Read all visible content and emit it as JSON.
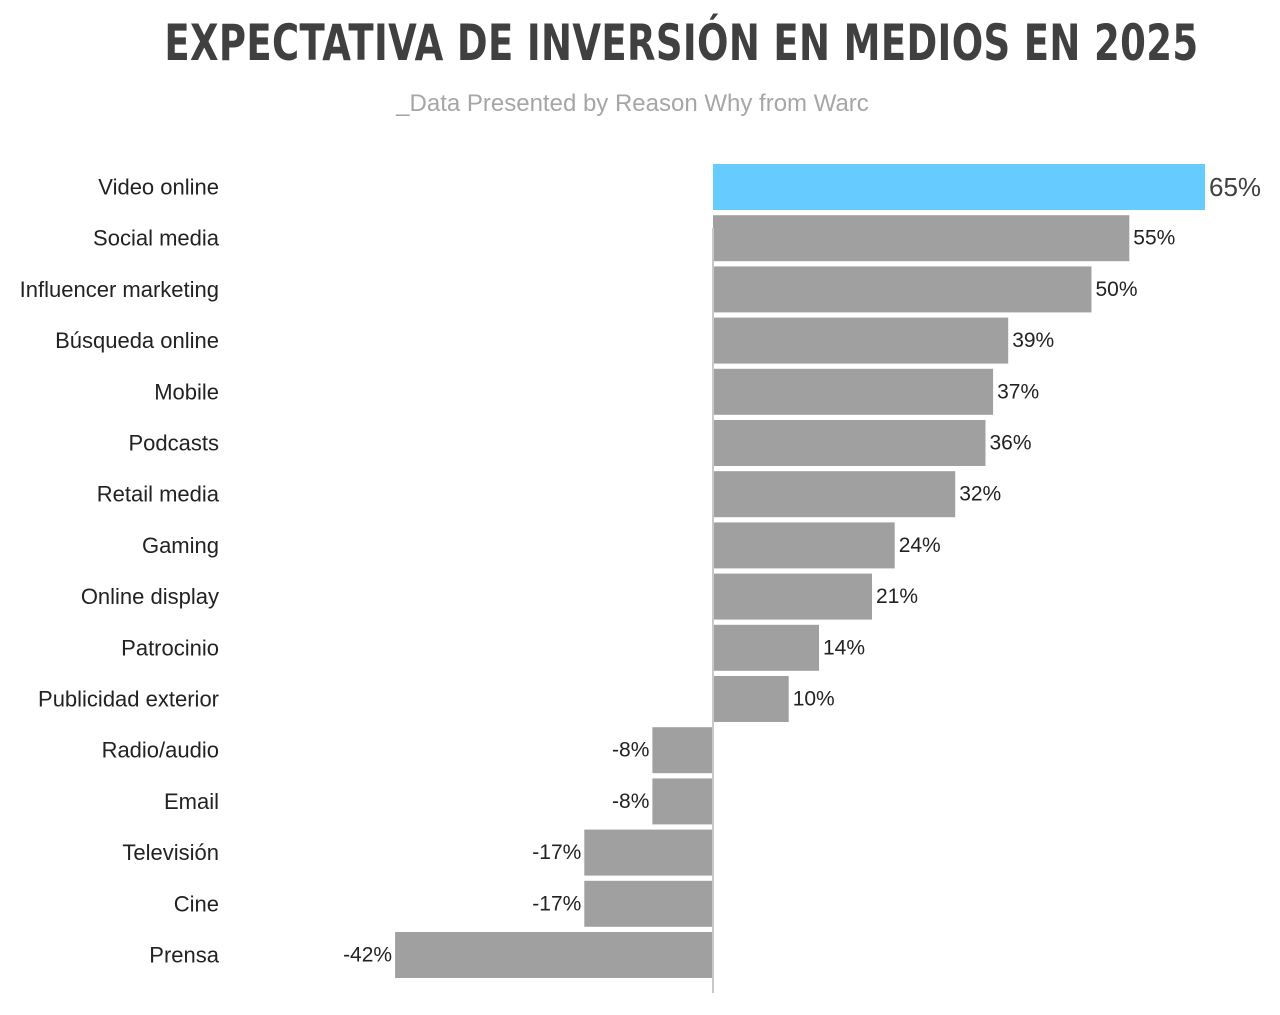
{
  "header": {
    "title": "EXPECTATIVA DE INVERSIÓN EN MEDIOS EN 2025",
    "subtitle": "_Data Presented by Reason Why from Warc"
  },
  "chart_data": {
    "type": "bar",
    "orientation": "horizontal",
    "title": "EXPECTATIVA DE INVERSIÓN EN MEDIOS EN 2025",
    "subtitle": "_Data Presented by Reason Why from Warc",
    "xlabel": "",
    "ylabel": "",
    "unit": "%",
    "categories": [
      "Video online",
      "Social media",
      "Influencer marketing",
      "Búsqueda online",
      "Mobile",
      "Podcasts",
      "Retail media",
      "Gaming",
      "Online display",
      "Patrocinio",
      "Publicidad exterior",
      "Radio/audio",
      "Email",
      "Televisión",
      "Cine",
      "Prensa"
    ],
    "values": [
      65,
      55,
      50,
      39,
      37,
      36,
      32,
      24,
      21,
      14,
      10,
      -8,
      -8,
      -17,
      -17,
      -42
    ],
    "value_labels": [
      "65%",
      "55%",
      "50%",
      "39%",
      "37%",
      "36%",
      "32%",
      "24%",
      "21%",
      "14%",
      "10%",
      "-8%",
      "-8%",
      "-17%",
      "-17%",
      "-42%"
    ],
    "highlight_index": 0,
    "colors": {
      "highlight": "#66ccff",
      "default": "#a0a0a0",
      "axis": "#c8c8c8"
    },
    "grid": false,
    "legend": "none"
  }
}
